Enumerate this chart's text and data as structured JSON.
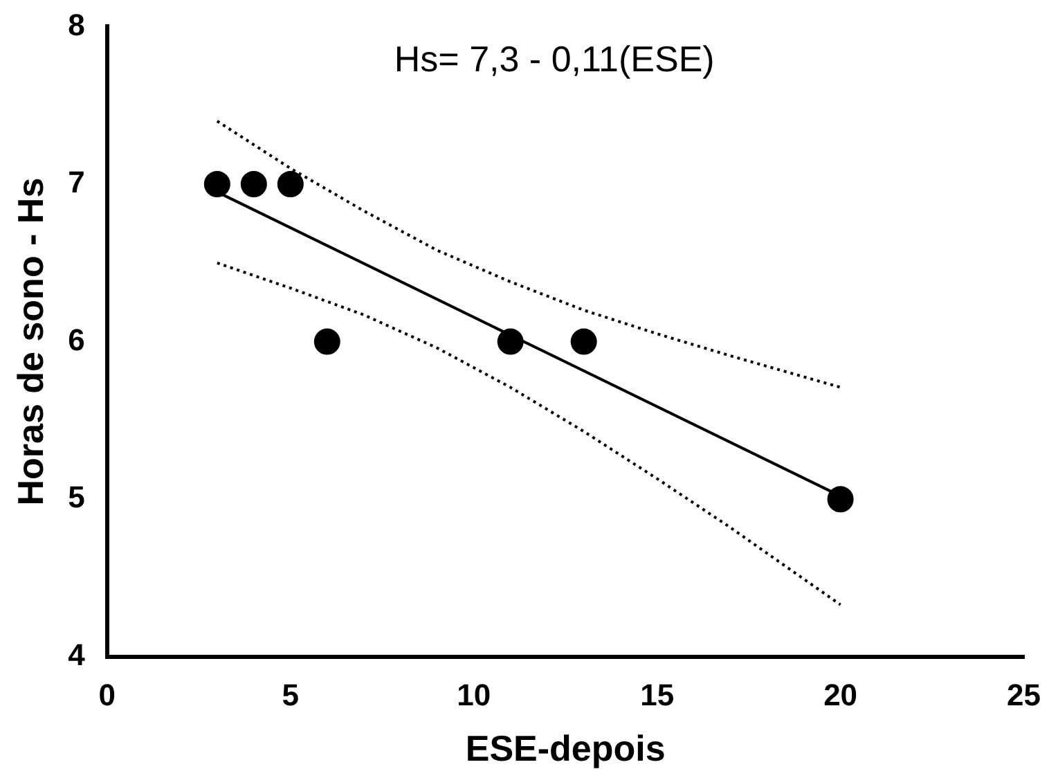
{
  "chart_data": {
    "type": "scatter",
    "xlabel": "ESE-depois",
    "ylabel": "Horas de sono - Hs",
    "annotations": [
      "Hs= 7,3 - 0,11(ESE)"
    ],
    "xlim": [
      0,
      25
    ],
    "xticks": [
      0,
      5,
      10,
      15,
      20,
      25
    ],
    "ylim": [
      4,
      8
    ],
    "yticks": [
      4,
      5,
      6,
      7,
      8
    ],
    "grid": false,
    "legend": false,
    "marker": "circle",
    "series": [
      {
        "type": "scatter",
        "color": "#000000",
        "x": [
          3,
          4,
          5,
          6,
          11,
          13,
          20
        ],
        "values": [
          7,
          7,
          7,
          6,
          6,
          6,
          5
        ]
      },
      {
        "type": "line",
        "color": "#000000",
        "line_style": "solid",
        "marker": "none",
        "x": [
          3,
          20
        ],
        "values": [
          6.95,
          5.02
        ]
      },
      {
        "type": "line",
        "color": "#000000",
        "line_style": "dotted",
        "marker": "none",
        "x": [
          3,
          5,
          7,
          9,
          11,
          13,
          15,
          17,
          20
        ],
        "values": [
          7.4,
          7.1,
          6.83,
          6.58,
          6.38,
          6.2,
          6.05,
          5.91,
          5.71
        ]
      },
      {
        "type": "line",
        "color": "#000000",
        "line_style": "dotted",
        "marker": "none",
        "x": [
          3,
          5,
          7,
          9,
          11,
          13,
          15,
          17,
          20
        ],
        "values": [
          6.5,
          6.34,
          6.17,
          5.96,
          5.71,
          5.43,
          5.13,
          4.82,
          4.33
        ]
      }
    ]
  }
}
